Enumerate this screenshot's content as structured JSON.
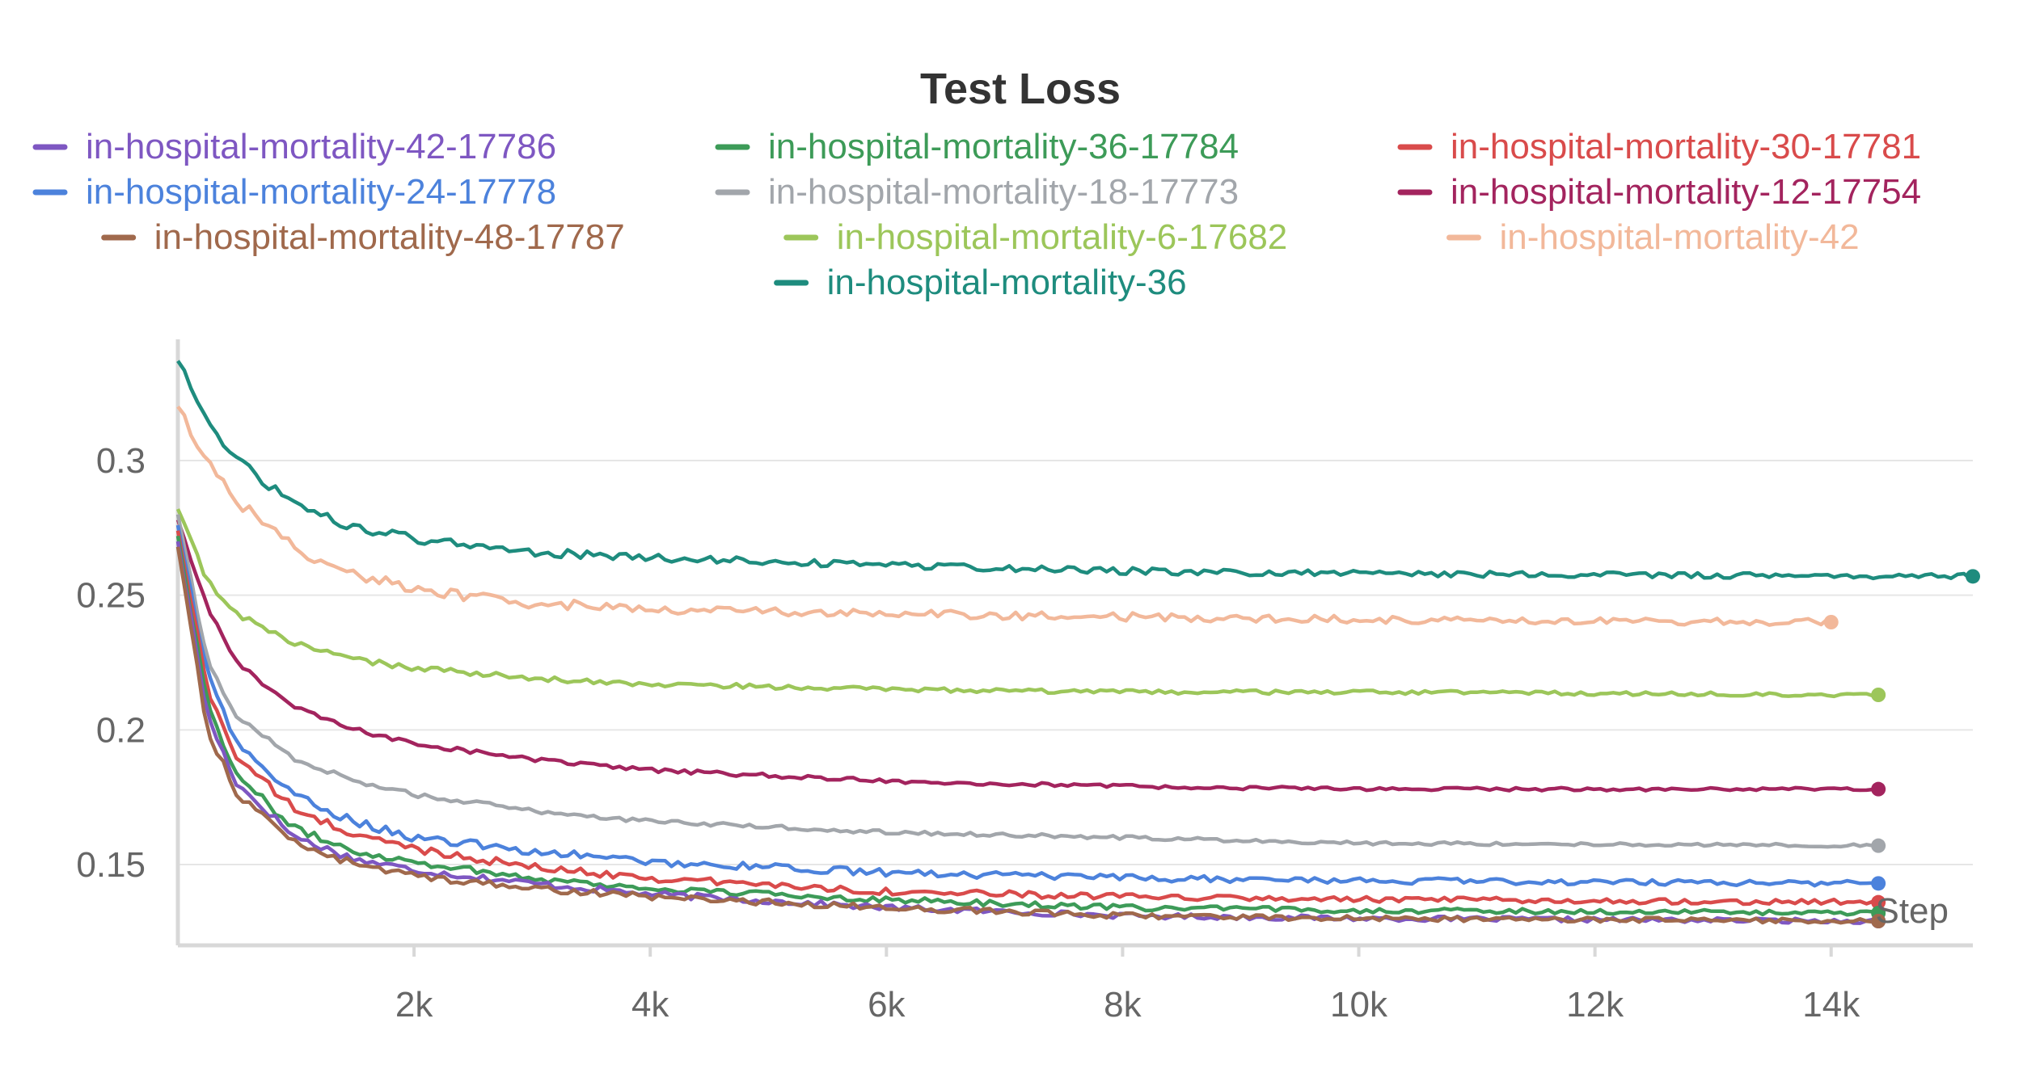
{
  "chart_data": {
    "type": "line",
    "title": "Test Loss",
    "xlabel": "Step",
    "ylabel": "",
    "xlim": [
      0,
      15200
    ],
    "ylim": [
      0.12,
      0.345
    ],
    "x_ticks": [
      {
        "value": 2000,
        "label": "2k"
      },
      {
        "value": 4000,
        "label": "4k"
      },
      {
        "value": 6000,
        "label": "6k"
      },
      {
        "value": 8000,
        "label": "8k"
      },
      {
        "value": 10000,
        "label": "10k"
      },
      {
        "value": 12000,
        "label": "12k"
      },
      {
        "value": 14000,
        "label": "14k"
      }
    ],
    "y_ticks": [
      {
        "value": 0.3,
        "label": "0.3"
      },
      {
        "value": 0.25,
        "label": "0.25"
      },
      {
        "value": 0.2,
        "label": "0.2"
      },
      {
        "value": 0.15,
        "label": "0.15"
      }
    ],
    "grid": true,
    "legend_position": "top",
    "series": [
      {
        "name": "in-hospital-mortality-42-17786",
        "color": "#7e57c2",
        "x_end": 14400,
        "x": [
          0,
          250,
          500,
          1000,
          1500,
          2000,
          3000,
          4000,
          6000,
          8000,
          10000,
          14400
        ],
        "y": [
          0.27,
          0.205,
          0.18,
          0.16,
          0.152,
          0.148,
          0.143,
          0.139,
          0.134,
          0.131,
          0.13,
          0.129
        ],
        "noise": 0.0015
      },
      {
        "name": "in-hospital-mortality-36-17784",
        "color": "#3d9b58",
        "x_end": 14400,
        "x": [
          0,
          250,
          500,
          1000,
          1500,
          2000,
          3000,
          4000,
          6000,
          8000,
          10000,
          14400
        ],
        "y": [
          0.272,
          0.21,
          0.183,
          0.163,
          0.155,
          0.151,
          0.145,
          0.141,
          0.137,
          0.134,
          0.133,
          0.132
        ],
        "noise": 0.0015
      },
      {
        "name": "in-hospital-mortality-30-17781",
        "color": "#d94b4b",
        "x_end": 14400,
        "x": [
          0,
          250,
          500,
          1000,
          1500,
          2000,
          3000,
          4000,
          6000,
          8000,
          10000,
          14400
        ],
        "y": [
          0.274,
          0.215,
          0.19,
          0.17,
          0.161,
          0.156,
          0.149,
          0.145,
          0.14,
          0.138,
          0.137,
          0.136
        ],
        "noise": 0.0017
      },
      {
        "name": "in-hospital-mortality-24-17778",
        "color": "#4c82dc",
        "x_end": 14400,
        "x": [
          0,
          250,
          500,
          1000,
          1500,
          2000,
          3000,
          4000,
          6000,
          8000,
          10000,
          14400
        ],
        "y": [
          0.276,
          0.22,
          0.195,
          0.175,
          0.166,
          0.16,
          0.155,
          0.151,
          0.147,
          0.145,
          0.144,
          0.143
        ],
        "noise": 0.0018
      },
      {
        "name": "in-hospital-mortality-18-17773",
        "color": "#a2a6ab",
        "x_end": 14400,
        "x": [
          0,
          250,
          500,
          1000,
          1500,
          2000,
          3000,
          4000,
          6000,
          8000,
          10000,
          14400
        ],
        "y": [
          0.28,
          0.225,
          0.205,
          0.189,
          0.181,
          0.176,
          0.17,
          0.166,
          0.162,
          0.16,
          0.158,
          0.157
        ],
        "noise": 0.001
      },
      {
        "name": "in-hospital-mortality-12-17754",
        "color": "#a3245e",
        "x_end": 14400,
        "x": [
          0,
          250,
          500,
          1000,
          1500,
          2000,
          3000,
          4000,
          6000,
          8000,
          10000,
          14400
        ],
        "y": [
          0.278,
          0.245,
          0.225,
          0.208,
          0.2,
          0.195,
          0.189,
          0.185,
          0.181,
          0.179,
          0.178,
          0.178
        ],
        "noise": 0.001
      },
      {
        "name": "in-hospital-mortality-48-17787",
        "color": "#a0694c",
        "x_end": 14400,
        "x": [
          0,
          250,
          500,
          1000,
          1500,
          2000,
          3000,
          4000,
          6000,
          8000,
          10000,
          14400
        ],
        "y": [
          0.268,
          0.2,
          0.176,
          0.158,
          0.15,
          0.146,
          0.141,
          0.138,
          0.134,
          0.131,
          0.13,
          0.129
        ],
        "noise": 0.0015
      },
      {
        "name": "in-hospital-mortality-6-17682",
        "color": "#9cc65a",
        "x_end": 14400,
        "x": [
          0,
          250,
          500,
          1000,
          1500,
          2000,
          3000,
          4000,
          6000,
          8000,
          10000,
          14400
        ],
        "y": [
          0.282,
          0.255,
          0.243,
          0.232,
          0.226,
          0.223,
          0.219,
          0.217,
          0.215,
          0.214,
          0.214,
          0.213
        ],
        "noise": 0.0012
      },
      {
        "name": "in-hospital-mortality-42",
        "color": "#f2b89a",
        "x_end": 14000,
        "x": [
          0,
          250,
          500,
          1000,
          1500,
          2000,
          3000,
          4000,
          6000,
          8000,
          10000,
          14000
        ],
        "y": [
          0.32,
          0.3,
          0.285,
          0.267,
          0.258,
          0.252,
          0.247,
          0.245,
          0.243,
          0.242,
          0.241,
          0.24
        ],
        "noise": 0.0022
      },
      {
        "name": "in-hospital-mortality-36",
        "color": "#1e8c7e",
        "x_end": 15200,
        "x": [
          0,
          250,
          500,
          1000,
          1500,
          2000,
          3000,
          4000,
          6000,
          8000,
          10000,
          15200
        ],
        "y": [
          0.337,
          0.315,
          0.3,
          0.283,
          0.275,
          0.271,
          0.266,
          0.264,
          0.261,
          0.259,
          0.258,
          0.257
        ],
        "noise": 0.0018
      }
    ],
    "legend_rows": [
      [
        0,
        1,
        2
      ],
      [
        3,
        4,
        5
      ],
      [
        6,
        7,
        8
      ],
      [
        9
      ]
    ]
  }
}
